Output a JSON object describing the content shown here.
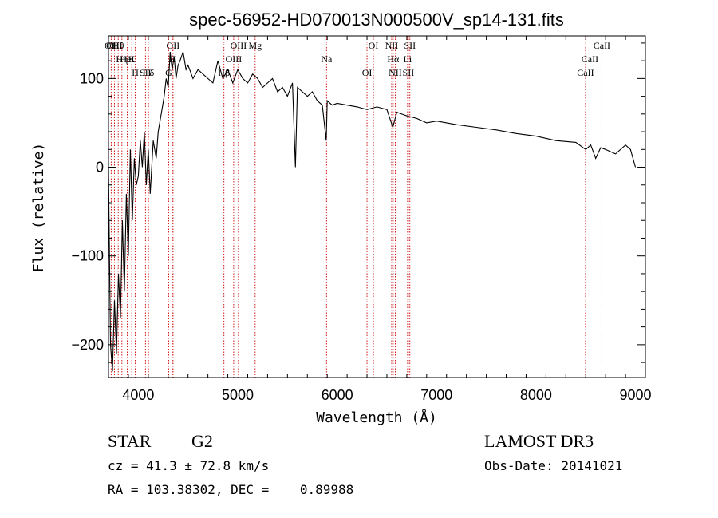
{
  "chart_data": {
    "type": "line",
    "title": "spec-56952-HD070013N000500V_sp14-131.fits",
    "xlabel": "Wavelength (Å)",
    "ylabel": "Flux (relative)",
    "xlim": [
      3700,
      9100
    ],
    "ylim": [
      -237,
      148
    ],
    "xticks": [
      4000,
      5000,
      6000,
      7000,
      8000,
      9000
    ],
    "xtick_labels": [
      "4000",
      "5000",
      "6000",
      "7000",
      "8000",
      "9000"
    ],
    "yticks": [
      -200,
      -100,
      0,
      100
    ],
    "ytick_labels": [
      "−200",
      "−100",
      "0",
      "100"
    ],
    "line_color": "#000000",
    "marker_color": "#cc0000",
    "spectrum": {
      "x": [
        3700,
        3720,
        3740,
        3760,
        3780,
        3800,
        3820,
        3840,
        3860,
        3880,
        3900,
        3920,
        3940,
        3960,
        3980,
        4000,
        4020,
        4040,
        4060,
        4080,
        4100,
        4120,
        4150,
        4180,
        4200,
        4230,
        4260,
        4280,
        4300,
        4320,
        4340,
        4360,
        4380,
        4400,
        4420,
        4450,
        4480,
        4500,
        4550,
        4600,
        4650,
        4700,
        4750,
        4800,
        4850,
        4900,
        4950,
        5000,
        5050,
        5100,
        5150,
        5200,
        5250,
        5300,
        5350,
        5400,
        5450,
        5500,
        5550,
        5580,
        5600,
        5650,
        5700,
        5750,
        5800,
        5850,
        5890,
        5900,
        5950,
        6000,
        6100,
        6200,
        6300,
        6400,
        6500,
        6560,
        6600,
        6700,
        6800,
        6900,
        7000,
        7200,
        7400,
        7600,
        7800,
        8000,
        8200,
        8400,
        8500,
        8550,
        8600,
        8650,
        8700,
        8800,
        8900,
        8950,
        9000
      ],
      "y": [
        0,
        -200,
        -230,
        -150,
        -210,
        -120,
        -170,
        -60,
        -140,
        -30,
        -100,
        20,
        -60,
        10,
        -20,
        -10,
        30,
        0,
        40,
        -20,
        20,
        -30,
        30,
        10,
        40,
        60,
        80,
        100,
        90,
        130,
        110,
        125,
        100,
        115,
        120,
        130,
        110,
        115,
        100,
        110,
        105,
        100,
        95,
        120,
        100,
        110,
        95,
        110,
        100,
        95,
        105,
        100,
        90,
        95,
        100,
        85,
        90,
        80,
        95,
        0,
        90,
        85,
        80,
        85,
        75,
        70,
        30,
        75,
        70,
        72,
        70,
        68,
        65,
        68,
        65,
        45,
        62,
        58,
        55,
        50,
        52,
        48,
        45,
        42,
        38,
        35,
        30,
        28,
        20,
        25,
        10,
        22,
        20,
        15,
        25,
        20,
        0
      ]
    },
    "lines": [
      {
        "label": "Hθ",
        "x": 3798
      },
      {
        "label": "K",
        "x": 3934
      },
      {
        "label": "Hδ",
        "x": 4102
      },
      {
        "label": "OII",
        "x": 3727
      },
      {
        "label": "HeI",
        "x": 3889
      },
      {
        "label": "SII",
        "x": 4072
      },
      {
        "label": "OIII",
        "x": 3760
      },
      {
        "label": "Hη",
        "x": 3835
      },
      {
        "label": "H",
        "x": 3969
      },
      {
        "label": "OII",
        "x": 4349
      },
      {
        "label": "H",
        "x": 4340
      },
      {
        "label": "G",
        "x": 4305
      },
      {
        "label": "OIII",
        "x": 5007
      },
      {
        "label": "OIII",
        "x": 4959
      },
      {
        "label": "Hβ",
        "x": 4861
      },
      {
        "label": "Mg",
        "x": 5175
      },
      {
        "label": "Na",
        "x": 5893
      },
      {
        "label": "OI",
        "x": 6300
      },
      {
        "label": "OI",
        "x": 6364
      },
      {
        "label": "Hα",
        "x": 6563
      },
      {
        "label": "SII",
        "x": 6716
      },
      {
        "label": "NII",
        "x": 6548
      },
      {
        "label": "Li",
        "x": 6708
      },
      {
        "label": "NII",
        "x": 6584
      },
      {
        "label": "SII",
        "x": 6731
      },
      {
        "label": "CaII",
        "x": 8542
      },
      {
        "label": "CaII",
        "x": 8498
      },
      {
        "label": "CaII",
        "x": 8662
      }
    ]
  },
  "info": {
    "class": "STAR",
    "subclass": "G2",
    "cz": "cz = 41.3 ± 72.8 km/s",
    "radec": "RA = 103.38302, DEC =    0.89988",
    "survey": "LAMOST DR3",
    "obsdate": "Obs-Date: 20141021"
  }
}
